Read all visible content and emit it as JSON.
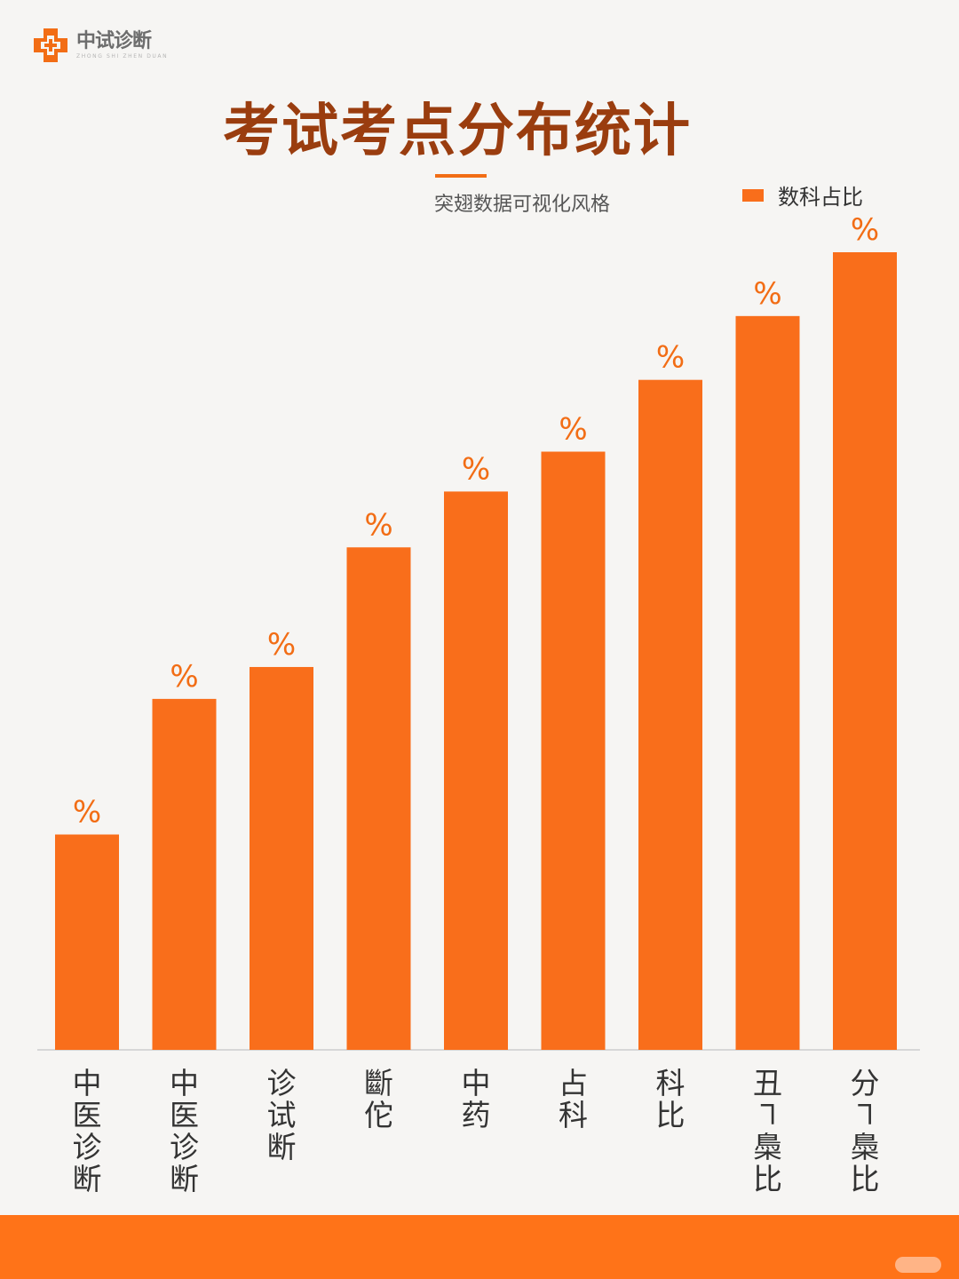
{
  "brand": {
    "name": "中试诊断",
    "subtitle": "ZHONG SHI ZHEN DUAN",
    "accent": "#f96e1b"
  },
  "header": {
    "title": "考试考点分布统计",
    "subtitle": "突翅数据可视化风格"
  },
  "legend": {
    "label": "数科占比"
  },
  "chart_data": {
    "type": "bar",
    "categories": [
      "中医诊断",
      "中医诊断",
      "诊试断",
      "斷佗",
      "中药",
      "占科",
      "科比",
      "丑㇕䲷比",
      "分㇕䲷比"
    ],
    "series": [
      {
        "name": "数科占比",
        "values": [
          27,
          44,
          48,
          63,
          70,
          75,
          84,
          92,
          100
        ]
      }
    ],
    "data_labels": [
      "%",
      "%",
      "%",
      "%",
      "%",
      "%",
      "%",
      "%",
      "%"
    ],
    "ylim": [
      0,
      100
    ],
    "grid": false,
    "legend_position": "top-right"
  }
}
